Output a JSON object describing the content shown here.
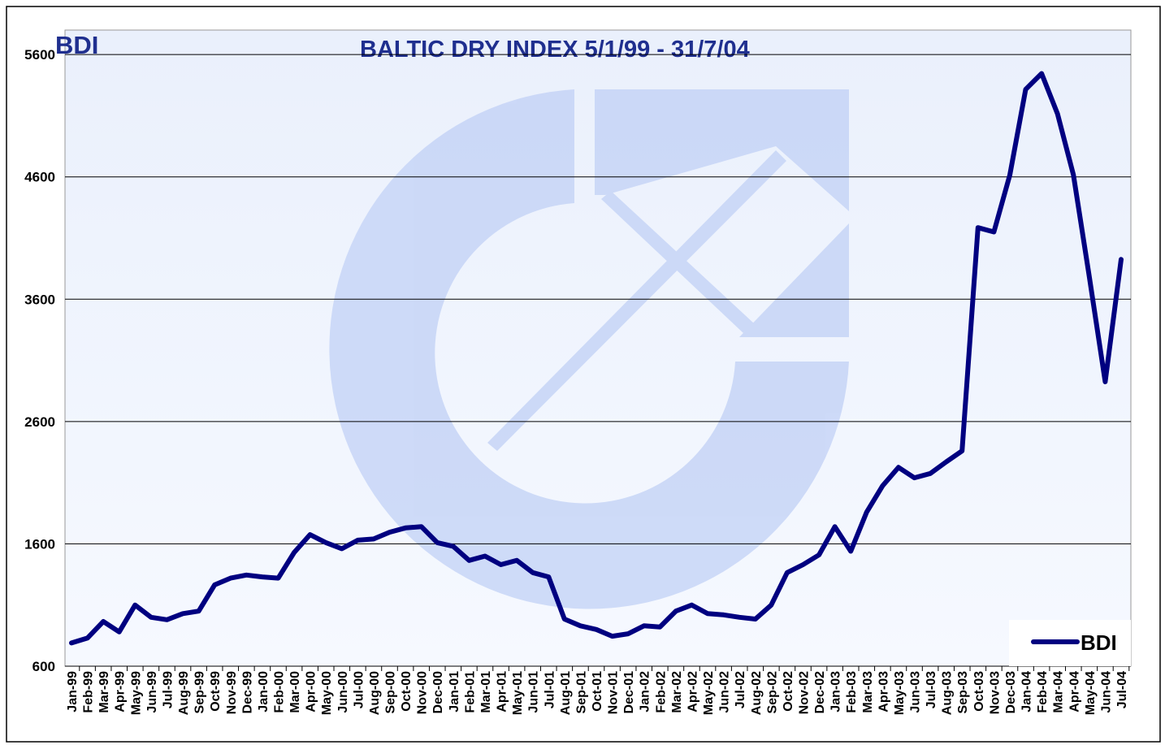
{
  "chart_data": {
    "type": "line",
    "title": "BALTIC DRY INDEX 5/1/99 - 31/7/04",
    "ylabel": "BDI",
    "categories": [
      "Jan-99",
      "Feb-99",
      "Mar-99",
      "Apr-99",
      "May-99",
      "Jun-99",
      "Jul-99",
      "Aug-99",
      "Sep-99",
      "Oct-99",
      "Nov-99",
      "Dec-99",
      "Jan-00",
      "Feb-00",
      "Mar-00",
      "Apr-00",
      "May-00",
      "Jun-00",
      "Jul-00",
      "Aug-00",
      "Sep-00",
      "Oct-00",
      "Nov-00",
      "Dec-00",
      "Jan-01",
      "Feb-01",
      "Mar-01",
      "Apr-01",
      "May-01",
      "Jun-01",
      "Jul-01",
      "Aug-01",
      "Sep-01",
      "Oct-01",
      "Nov-01",
      "Dec-01",
      "Jan-02",
      "Feb-02",
      "Mar-02",
      "Apr-02",
      "May-02",
      "Jun-02",
      "Jul-02",
      "Aug-02",
      "Sep-02",
      "Oct-02",
      "Nov-02",
      "Dec-02",
      "Jan-03",
      "Feb-03",
      "Mar-03",
      "Apr-03",
      "May-03",
      "Jun-03",
      "Jul-03",
      "Aug-03",
      "Sep-03",
      "Oct-03",
      "Nov-03",
      "Dec-03",
      "Jan-04",
      "Feb-04",
      "Mar-04",
      "Apr-04",
      "May-04",
      "Jun-04",
      "Jul-04"
    ],
    "series": [
      {
        "name": "BDI",
        "color": "#000080",
        "values": [
          790,
          830,
          965,
          880,
          1100,
          1000,
          980,
          1030,
          1050,
          1265,
          1320,
          1345,
          1330,
          1320,
          1530,
          1675,
          1610,
          1560,
          1630,
          1640,
          1695,
          1730,
          1740,
          1610,
          1580,
          1465,
          1500,
          1430,
          1465,
          1365,
          1330,
          985,
          930,
          900,
          845,
          865,
          930,
          920,
          1050,
          1100,
          1030,
          1020,
          1000,
          985,
          1100,
          1365,
          1430,
          1510,
          1740,
          1540,
          1860,
          2075,
          2225,
          2140,
          2175,
          2270,
          2360,
          4185,
          4150,
          4615,
          5315,
          5445,
          5115,
          4615,
          3785,
          2925,
          3925
        ]
      }
    ],
    "ylim": [
      600,
      5800
    ],
    "yticks": [
      600,
      1600,
      2600,
      3600,
      4600,
      5600
    ],
    "grid": true,
    "legend": "lower right"
  }
}
